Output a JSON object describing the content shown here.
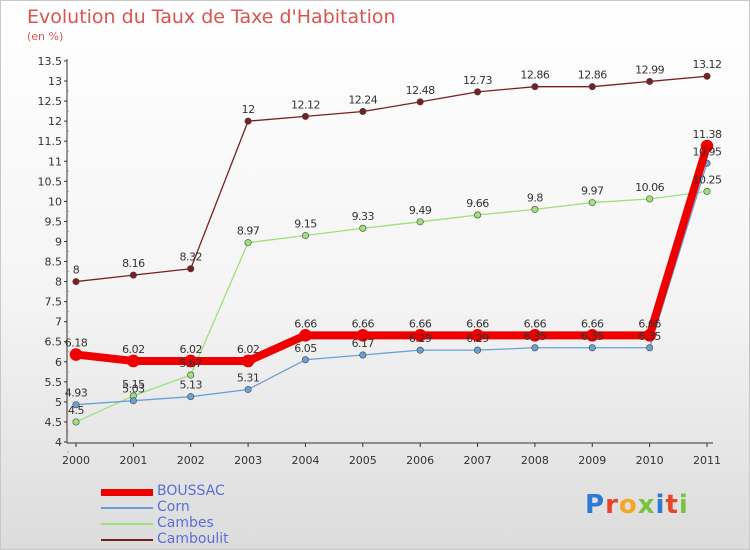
{
  "title": "Evolution du Taux de Taxe d'Habitation",
  "unit": "(en %)",
  "logo": {
    "text": "Proxiti",
    "colors": [
      "#2b7bd6",
      "#e8442a",
      "#f5a623",
      "#7cc242",
      "#2b7bd6",
      "#e8442a",
      "#7cc242"
    ]
  },
  "chart_data": {
    "type": "line",
    "title": "Evolution du Taux de Taxe d'Habitation",
    "ylabel": "(en %)",
    "xlabel": "",
    "x": [
      "2000",
      "2001",
      "2002",
      "2003",
      "2004",
      "2005",
      "2006",
      "2007",
      "2008",
      "2009",
      "2010",
      "2011"
    ],
    "ylim": [
      4,
      13.5
    ],
    "y_ticks": [
      "4",
      "4.5",
      "5",
      "5.5",
      "6",
      "6.5",
      "7",
      "7.5",
      "8",
      "8.5",
      "9",
      "9.5",
      "10",
      "10.5",
      "11",
      "11.5",
      "12",
      "12.5",
      "13",
      "13.5"
    ],
    "grid": false,
    "legend_position": "bottom-left",
    "series": [
      {
        "name": "Camboulit",
        "color": "#7a1f1f",
        "width": 1.3,
        "marker": 3.2,
        "values": [
          8,
          8.16,
          8.32,
          12,
          12.12,
          12.24,
          12.48,
          12.73,
          12.86,
          12.86,
          12.99,
          13.12
        ],
        "labels": [
          "8",
          "8.16",
          "8.32",
          "12",
          "12.12",
          "12.24",
          "12.48",
          "12.73",
          "12.86",
          "12.86",
          "12.99",
          "13.12"
        ]
      },
      {
        "name": "Cambes",
        "color": "#9ee07a",
        "width": 1.3,
        "marker": 3.2,
        "values": [
          4.5,
          5.15,
          5.67,
          8.97,
          9.15,
          9.33,
          9.49,
          9.66,
          9.8,
          9.97,
          10.06,
          10.25
        ],
        "labels": [
          "4.5",
          "5.15",
          "5.67",
          "8.97",
          "9.15",
          "9.33",
          "9.49",
          "9.66",
          "9.8",
          "9.97",
          "10.06",
          "10.25"
        ]
      },
      {
        "name": "Corn",
        "color": "#6aa0d8",
        "width": 1.3,
        "marker": 3.2,
        "values": [
          4.93,
          5.03,
          5.13,
          5.31,
          6.05,
          6.17,
          6.29,
          6.29,
          6.35,
          6.35,
          6.35,
          10.95
        ],
        "labels": [
          "4.93",
          "5.03",
          "5.13",
          "5.31",
          "6.05",
          "6.17",
          "6.29",
          "6.29",
          "6.35",
          "6.35",
          "6.35",
          "10.95"
        ]
      },
      {
        "name": "BOUSSAC",
        "color": "#ee0000",
        "width": 8,
        "marker": 6,
        "values": [
          6.18,
          6.02,
          6.02,
          6.02,
          6.66,
          6.66,
          6.66,
          6.66,
          6.66,
          6.66,
          6.66,
          11.38
        ],
        "labels": [
          "6.18",
          "6.02",
          "6.02",
          "6.02",
          "6.66",
          "6.66",
          "6.66",
          "6.66",
          "6.66",
          "6.66",
          "6.66",
          "11.38"
        ]
      }
    ],
    "legend": [
      {
        "name": "BOUSSAC",
        "color": "#ee0000",
        "thickness": 7
      },
      {
        "name": "Corn",
        "color": "#6aa0d8",
        "thickness": 2
      },
      {
        "name": "Cambes",
        "color": "#9ee07a",
        "thickness": 2
      },
      {
        "name": "Camboulit",
        "color": "#7a1f1f",
        "thickness": 2
      }
    ]
  }
}
